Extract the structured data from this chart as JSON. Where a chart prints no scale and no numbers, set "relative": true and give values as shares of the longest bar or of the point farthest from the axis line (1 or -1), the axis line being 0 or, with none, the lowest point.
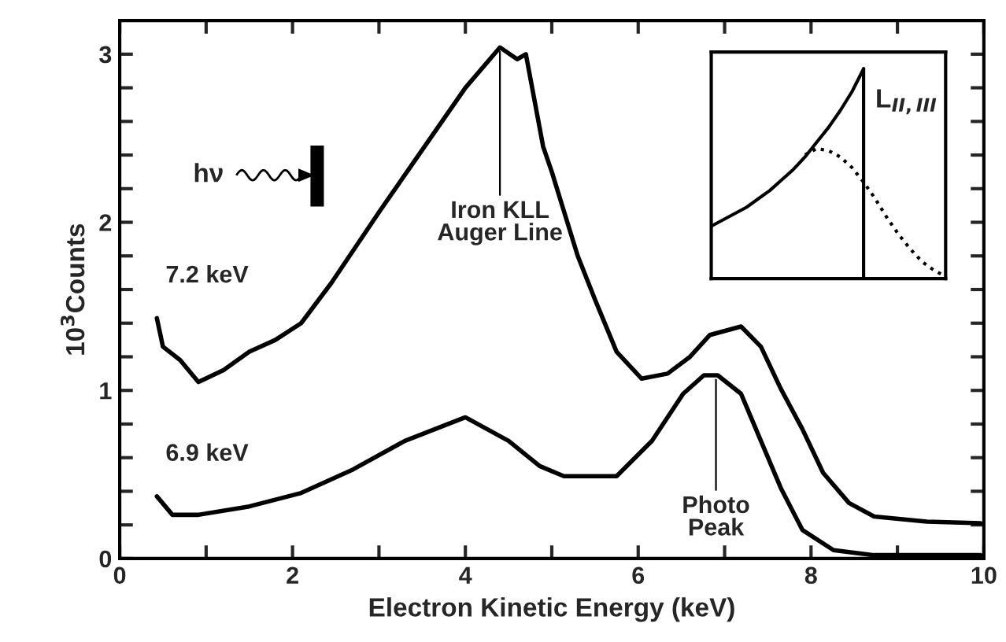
{
  "chart_data": [
    {
      "type": "line",
      "xlabel": "Electron Kinetic Energy (keV)",
      "ylabel": "10$^{3}$Counts",
      "xlim": [
        0,
        10
      ],
      "ylim": [
        0,
        3.2
      ],
      "xticks": [
        0,
        {
          "value": 1,
          "label": null
        },
        2,
        {
          "value": 3,
          "label": null
        },
        4,
        {
          "value": 5,
          "label": null
        },
        6,
        {
          "value": 7,
          "label": null
        },
        8,
        {
          "value": 9,
          "label": null
        },
        10
      ],
      "yticks": [
        0,
        {
          "value": 0.2,
          "label": null
        },
        {
          "value": 0.4,
          "label": null
        },
        {
          "value": 0.6,
          "label": null
        },
        {
          "value": 0.8,
          "label": null
        },
        1,
        {
          "value": 1.2,
          "label": null
        },
        {
          "value": 1.4,
          "label": null
        },
        {
          "value": 1.6,
          "label": null
        },
        {
          "value": 1.8,
          "label": null
        },
        2,
        {
          "value": 2.2,
          "label": null
        },
        {
          "value": 2.4,
          "label": null
        },
        {
          "value": 2.6,
          "label": null
        },
        {
          "value": 2.8,
          "label": null
        },
        3
      ],
      "marker": "none",
      "line_style": "solid",
      "legend": false,
      "series": [
        {
          "name": "7.2 keV",
          "color": "#000000",
          "x": [
            0.43,
            0.5,
            0.7,
            0.91,
            1.2,
            1.5,
            1.8,
            2.1,
            2.45,
            3.0,
            3.5,
            4.0,
            4.4,
            4.6,
            4.7,
            4.9,
            5.0,
            5.3,
            5.5,
            5.75,
            6.04,
            6.34,
            6.6,
            6.83,
            7.19,
            7.42,
            7.65,
            7.9,
            8.14,
            8.44,
            8.73,
            9.34,
            9.96
          ],
          "values": [
            1.43,
            1.26,
            1.18,
            1.05,
            1.12,
            1.23,
            1.3,
            1.4,
            1.64,
            2.06,
            2.43,
            2.8,
            3.04,
            2.97,
            3.0,
            2.45,
            2.3,
            1.8,
            1.54,
            1.23,
            1.07,
            1.1,
            1.2,
            1.33,
            1.38,
            1.26,
            1.01,
            0.77,
            0.51,
            0.33,
            0.25,
            0.22,
            0.21
          ]
        },
        {
          "name": "6.9 keV",
          "color": "#000000",
          "x": [
            0.43,
            0.61,
            0.91,
            1.5,
            2.1,
            2.7,
            3.3,
            3.9,
            4.0,
            4.5,
            4.86,
            5.14,
            5.4,
            5.75,
            6.16,
            6.52,
            6.76,
            6.92,
            7.19,
            7.42,
            7.65,
            7.9,
            8.26,
            8.73,
            9.96
          ],
          "values": [
            0.37,
            0.26,
            0.26,
            0.31,
            0.39,
            0.53,
            0.7,
            0.82,
            0.84,
            0.7,
            0.55,
            0.49,
            0.49,
            0.49,
            0.7,
            0.98,
            1.09,
            1.09,
            0.98,
            0.7,
            0.42,
            0.17,
            0.05,
            0.02,
            0.02
          ]
        }
      ],
      "annotations": [
        {
          "text": "Iron KLL\nAuger Line",
          "x": 4.4,
          "y": 3.04
        },
        {
          "text": "Photo\nPeak",
          "x": 6.9,
          "y": 1.09
        },
        "hν"
      ]
    },
    {
      "type": "line",
      "relative": true,
      "tick_labels": false,
      "categories": [
        null,
        null,
        null,
        null,
        null,
        null,
        null,
        null,
        null,
        null,
        null,
        null,
        null,
        null,
        null,
        null,
        null,
        null,
        null,
        null,
        null
      ],
      "series": [
        {
          "color": "#000000",
          "line_style": "solid",
          "values": [
            0.25,
            0.28,
            0.31,
            0.34,
            0.38,
            0.42,
            0.47,
            0.52,
            0.58,
            0.65,
            0.72,
            0.8,
            0.89,
            1.0,
            null,
            null,
            null,
            null,
            null,
            null,
            null
          ]
        },
        {
          "color": "#000000",
          "line_style": "dotted",
          "values": [
            null,
            null,
            null,
            null,
            null,
            null,
            null,
            null,
            0.59,
            0.62,
            0.61,
            0.58,
            0.53,
            0.46,
            0.38,
            0.29,
            0.21,
            0.14,
            0.08,
            0.04,
            0.01
          ]
        }
      ],
      "annotations": [
        "L$_{II,III}$"
      ]
    }
  ]
}
